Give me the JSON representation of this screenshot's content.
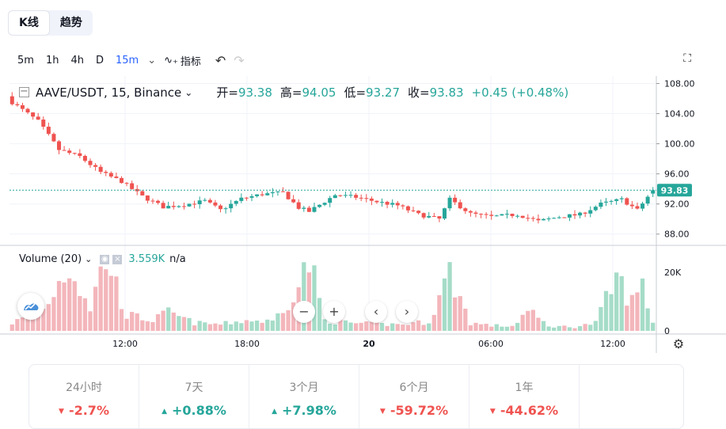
{
  "tabs": [
    {
      "label": "K线"
    },
    {
      "label": "趋势"
    }
  ],
  "toolbar": {
    "timeframes": [
      "5m",
      "1h",
      "4h",
      "D",
      "15m"
    ],
    "indicators_label": "指标"
  },
  "legend": {
    "symbol": "AAVE/USDT, 15, Binance",
    "open_label": "开",
    "open": "93.38",
    "high_label": "高",
    "high": "94.05",
    "low_label": "低",
    "low": "93.27",
    "close_label": "收",
    "close": "93.83",
    "change": "+0.45 (+0.48%)"
  },
  "volume_legend": {
    "label": "Volume (20)",
    "value": "3.559K",
    "ma": "n/a"
  },
  "price_axis": {
    "ticks": [
      "108.00",
      "104.00",
      "100.00",
      "96.00",
      "92.00",
      "88.00"
    ],
    "last_price": "93.83"
  },
  "volume_axis": {
    "ticks": [
      "20K",
      "0"
    ]
  },
  "time_axis": {
    "ticks": [
      "12:00",
      "18:00",
      "20",
      "06:00",
      "12:00"
    ]
  },
  "stats": [
    {
      "period": "24小时",
      "change": "-2.7%",
      "dir": "down"
    },
    {
      "period": "7天",
      "change": "+0.88%",
      "dir": "up"
    },
    {
      "period": "3个月",
      "change": "+7.98%",
      "dir": "up"
    },
    {
      "period": "6个月",
      "change": "-59.72%",
      "dir": "down"
    },
    {
      "period": "1年",
      "change": "-44.62%",
      "dir": "down"
    }
  ],
  "colors": {
    "up": "#26a69a",
    "down": "#ef5350",
    "up_vol": "#a5dcc8",
    "down_vol": "#f3b6bb",
    "accent": "#2962ff"
  },
  "chart_data": {
    "type": "candlestick",
    "interval": "15",
    "y_range": [
      86.5,
      109
    ],
    "volume_range": [
      0,
      27000
    ],
    "close_path": [
      [
        0,
        105.5
      ],
      [
        5,
        103.0
      ],
      [
        9,
        99.2
      ],
      [
        13,
        98.3
      ],
      [
        17,
        96.2
      ],
      [
        21,
        95.0
      ],
      [
        25,
        93.0
      ],
      [
        29,
        91.6
      ],
      [
        33,
        91.9
      ],
      [
        37,
        92.4
      ],
      [
        40,
        91.2
      ],
      [
        44,
        92.7
      ],
      [
        48,
        93.3
      ],
      [
        52,
        93.5
      ],
      [
        55,
        91.5
      ],
      [
        57,
        91.0
      ],
      [
        62,
        93.2
      ],
      [
        66,
        92.9
      ],
      [
        70,
        92.3
      ],
      [
        74,
        91.8
      ],
      [
        78,
        90.6
      ],
      [
        82,
        90.0
      ],
      [
        84,
        92.6
      ],
      [
        88,
        90.7
      ],
      [
        92,
        90.3
      ],
      [
        97,
        90.6
      ],
      [
        101,
        89.7
      ],
      [
        105,
        90.3
      ],
      [
        109,
        90.6
      ],
      [
        113,
        92.0
      ],
      [
        117,
        92.6
      ],
      [
        120,
        91.2
      ],
      [
        123,
        93.83
      ]
    ],
    "volume_path": [
      [
        0,
        3000
      ],
      [
        6,
        8000
      ],
      [
        11,
        25000
      ],
      [
        15,
        9000
      ],
      [
        18,
        28000
      ],
      [
        22,
        6000
      ],
      [
        27,
        4000
      ],
      [
        30,
        7000
      ],
      [
        35,
        3000
      ],
      [
        40,
        2500
      ],
      [
        45,
        4000
      ],
      [
        50,
        3500
      ],
      [
        55,
        17000
      ],
      [
        57,
        27000
      ],
      [
        60,
        4000
      ],
      [
        65,
        3000
      ],
      [
        70,
        2500
      ],
      [
        75,
        2500
      ],
      [
        80,
        3500
      ],
      [
        84,
        22000
      ],
      [
        88,
        3000
      ],
      [
        92,
        2000
      ],
      [
        96,
        1800
      ],
      [
        99,
        7500
      ],
      [
        103,
        1800
      ],
      [
        108,
        1500
      ],
      [
        112,
        3000
      ],
      [
        116,
        20000
      ],
      [
        119,
        11000
      ],
      [
        121,
        17000
      ],
      [
        123,
        3559
      ]
    ],
    "last_close": 93.83
  }
}
